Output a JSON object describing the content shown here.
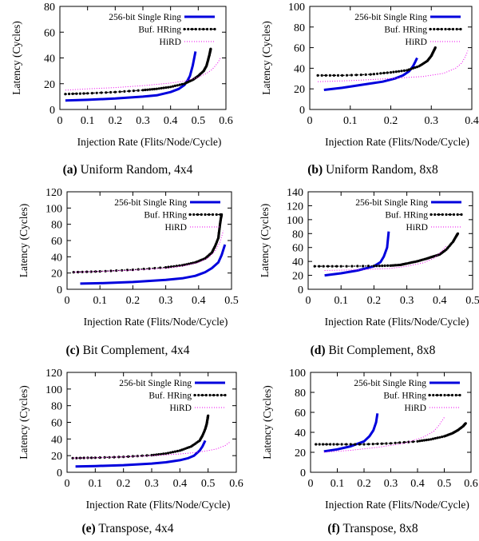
{
  "colors": {
    "single_ring": "#0000dd",
    "buf_hring": "#000000",
    "hird": "#ee00ee"
  },
  "chart_data": [
    {
      "id": "a",
      "type": "line",
      "caption_letter": "(a)",
      "caption_text": "Uniform Random, 4x4",
      "xlabel": "Injection Rate (Flits/Node/Cycle)",
      "ylabel": "Latency (Cycles)",
      "xlim": [
        0,
        0.6
      ],
      "ylim": [
        0,
        80
      ],
      "xticks": [
        "0",
        "0.1",
        "0.2",
        "0.3",
        "0.4",
        "0.5",
        "0.6"
      ],
      "yticks": [
        "0",
        "20",
        "40",
        "60",
        "80"
      ],
      "legend_position": "top-right",
      "series": [
        {
          "name": "256-bit Single Ring",
          "style": "thick-solid",
          "x": [
            0.02,
            0.1,
            0.2,
            0.3,
            0.35,
            0.4,
            0.43,
            0.45,
            0.46,
            0.47,
            0.48,
            0.49
          ],
          "y": [
            7,
            7.5,
            8.5,
            10,
            11,
            13.5,
            16,
            19,
            22,
            26,
            34,
            45
          ]
        },
        {
          "name": "Buf. HRing",
          "style": "dotted-marker",
          "x": [
            0.02,
            0.1,
            0.2,
            0.3,
            0.35,
            0.4,
            0.45,
            0.48,
            0.5,
            0.52,
            0.53,
            0.535,
            0.54,
            0.543,
            0.545
          ],
          "y": [
            12,
            12.5,
            13.5,
            15,
            16,
            17.5,
            20,
            23,
            26,
            30,
            34,
            38,
            42,
            45,
            47
          ]
        },
        {
          "name": "HiRD",
          "style": "dotted",
          "x": [
            0.02,
            0.1,
            0.2,
            0.3,
            0.4,
            0.45,
            0.5,
            0.53,
            0.55,
            0.57,
            0.58
          ],
          "y": [
            15,
            16,
            17,
            18.5,
            20.5,
            22,
            25,
            28,
            31,
            36,
            40
          ]
        }
      ]
    },
    {
      "id": "b",
      "type": "line",
      "caption_letter": "(b)",
      "caption_text": "Uniform Random, 8x8",
      "xlabel": "Injection Rate (Flits/Node/Cycle)",
      "ylabel": "Latency (Cycles)",
      "xlim": [
        0,
        0.4
      ],
      "ylim": [
        0,
        100
      ],
      "xticks": [
        "0",
        "0.1",
        "0.2",
        "0.3",
        "0.4"
      ],
      "yticks": [
        "0",
        "20",
        "40",
        "60",
        "80",
        "100"
      ],
      "legend_position": "top-right",
      "series": [
        {
          "name": "256-bit Single Ring",
          "style": "thick-solid",
          "x": [
            0.035,
            0.08,
            0.13,
            0.18,
            0.21,
            0.23,
            0.245,
            0.255,
            0.26,
            0.265
          ],
          "y": [
            19,
            21,
            24,
            27,
            30,
            33,
            37,
            42,
            46,
            50
          ]
        },
        {
          "name": "Buf. HRing",
          "style": "dotted-marker",
          "x": [
            0.02,
            0.08,
            0.15,
            0.2,
            0.24,
            0.27,
            0.29,
            0.3,
            0.305,
            0.31
          ],
          "y": [
            33,
            33,
            34,
            36,
            38,
            42,
            47,
            52,
            56,
            60
          ]
        },
        {
          "name": "HiRD",
          "style": "dotted",
          "x": [
            0.02,
            0.1,
            0.2,
            0.28,
            0.33,
            0.36,
            0.375,
            0.385,
            0.39
          ],
          "y": [
            27,
            28,
            30,
            32,
            35,
            40,
            45,
            52,
            57
          ]
        }
      ]
    },
    {
      "id": "c",
      "type": "line",
      "caption_letter": "(c)",
      "caption_text": "Bit Complement, 4x4",
      "xlabel": "Injection Rate (Flits/Node/Cycle)",
      "ylabel": "Latency (Cycles)",
      "xlim": [
        0,
        0.5
      ],
      "ylim": [
        0,
        120
      ],
      "xticks": [
        "0",
        "0.1",
        "0.2",
        "0.3",
        "0.4",
        "0.5"
      ],
      "yticks": [
        "0",
        "20",
        "40",
        "60",
        "80",
        "100",
        "120"
      ],
      "legend_position": "top-right",
      "series": [
        {
          "name": "256-bit Single Ring",
          "style": "thick-solid",
          "x": [
            0.04,
            0.1,
            0.2,
            0.3,
            0.35,
            0.39,
            0.42,
            0.44,
            0.46,
            0.47,
            0.48
          ],
          "y": [
            7,
            7.5,
            9,
            11.5,
            13.5,
            16.5,
            21,
            26,
            33,
            42,
            55
          ]
        },
        {
          "name": "Buf. HRing",
          "style": "dotted-marker",
          "x": [
            0.02,
            0.1,
            0.2,
            0.3,
            0.35,
            0.39,
            0.42,
            0.44,
            0.45,
            0.46,
            0.462,
            0.465,
            0.468,
            0.47
          ],
          "y": [
            21,
            22,
            24,
            27,
            29.5,
            33,
            38,
            45,
            53,
            63,
            70,
            80,
            88,
            92
          ]
        },
        {
          "name": "HiRD",
          "style": "dotted",
          "x": [
            0.02,
            0.1,
            0.2,
            0.3,
            0.35,
            0.4,
            0.43,
            0.45,
            0.465,
            0.475
          ],
          "y": [
            21,
            22,
            23.5,
            26,
            28.5,
            33,
            39,
            47,
            58,
            72
          ]
        }
      ]
    },
    {
      "id": "d",
      "type": "line",
      "caption_letter": "(d)",
      "caption_text": "Bit Complement, 8x8",
      "xlabel": "Injection Rate (Flits/Node/Cycle)",
      "ylabel": "Latency (Cycles)",
      "xlim": [
        0,
        0.5
      ],
      "ylim": [
        0,
        140
      ],
      "xticks": [
        "0",
        "0.1",
        "0.2",
        "0.3",
        "0.4",
        "0.5"
      ],
      "yticks": [
        "0",
        "20",
        "40",
        "60",
        "80",
        "100",
        "120",
        "140"
      ],
      "legend_position": "top-right",
      "series": [
        {
          "name": "256-bit Single Ring",
          "style": "thick-solid",
          "x": [
            0.05,
            0.1,
            0.15,
            0.2,
            0.22,
            0.23,
            0.24,
            0.245
          ],
          "y": [
            20,
            23,
            27,
            33,
            39,
            47,
            60,
            83
          ]
        },
        {
          "name": "Buf. HRing",
          "style": "dotted-marker",
          "x": [
            0.02,
            0.1,
            0.2,
            0.25,
            0.28,
            0.3,
            0.33,
            0.36,
            0.38,
            0.4,
            0.42,
            0.44,
            0.45,
            0.455
          ],
          "y": [
            33,
            33,
            33.5,
            34,
            35,
            37,
            40,
            44,
            47,
            50,
            57,
            68,
            76,
            80
          ]
        },
        {
          "name": "HiRD",
          "style": "dotted",
          "x": [
            0.05,
            0.15,
            0.25,
            0.3,
            0.35,
            0.38,
            0.4,
            0.42
          ],
          "y": [
            27,
            28,
            30,
            33,
            38,
            44,
            52,
            62
          ]
        }
      ]
    },
    {
      "id": "e",
      "type": "line",
      "caption_letter": "(e)",
      "caption_text": "Transpose, 4x4",
      "xlabel": "Injection Rate (Flits/Node/Cycle)",
      "ylabel": "Latency (Cycles)",
      "xlim": [
        0,
        0.6
      ],
      "ylim": [
        0,
        120
      ],
      "xticks": [
        "0",
        "0.1",
        "0.2",
        "0.3",
        "0.4",
        "0.5",
        "0.6"
      ],
      "yticks": [
        "0",
        "20",
        "40",
        "60",
        "80",
        "100",
        "120"
      ],
      "legend_position": "top-right",
      "series": [
        {
          "name": "256-bit Single Ring",
          "style": "thick-solid",
          "x": [
            0.03,
            0.1,
            0.2,
            0.3,
            0.35,
            0.4,
            0.43,
            0.45,
            0.47,
            0.48,
            0.49
          ],
          "y": [
            7,
            7.5,
            8.5,
            10.5,
            12,
            14.5,
            17,
            20,
            26,
            31,
            38
          ]
        },
        {
          "name": "Buf. HRing",
          "style": "dotted-marker",
          "x": [
            0.02,
            0.1,
            0.2,
            0.3,
            0.35,
            0.4,
            0.44,
            0.47,
            0.48,
            0.49,
            0.495,
            0.498,
            0.5
          ],
          "y": [
            17,
            17.5,
            18.5,
            20.5,
            22.5,
            26,
            31,
            38,
            44,
            52,
            58,
            64,
            68
          ]
        },
        {
          "name": "HiRD",
          "style": "dotted",
          "x": [
            0.02,
            0.1,
            0.2,
            0.3,
            0.4,
            0.45,
            0.5,
            0.53,
            0.56,
            0.58
          ],
          "y": [
            17,
            17.5,
            18.5,
            20,
            22,
            23.5,
            26,
            28,
            32,
            37
          ]
        }
      ]
    },
    {
      "id": "f",
      "type": "line",
      "caption_letter": "(f)",
      "caption_text": "Transpose, 8x8",
      "xlabel": "Injection Rate (Flits/Node/Cycle)",
      "ylabel": "Latency (Cycles)",
      "xlim": [
        0,
        0.6
      ],
      "ylim": [
        0,
        100
      ],
      "xticks": [
        "0",
        "0.1",
        "0.2",
        "0.3",
        "0.4",
        "0.5",
        "0.6"
      ],
      "yticks": [
        "0",
        "20",
        "40",
        "60",
        "80",
        "100"
      ],
      "legend_position": "top-right",
      "series": [
        {
          "name": "256-bit Single Ring",
          "style": "thick-solid",
          "x": [
            0.05,
            0.1,
            0.15,
            0.2,
            0.22,
            0.235,
            0.245,
            0.25
          ],
          "y": [
            21,
            23,
            26,
            31,
            36,
            42,
            50,
            59
          ]
        },
        {
          "name": "Buf. HRing",
          "style": "dotted-marker",
          "x": [
            0.02,
            0.1,
            0.2,
            0.3,
            0.4,
            0.45,
            0.5,
            0.53,
            0.55,
            0.57,
            0.58
          ],
          "y": [
            28,
            28,
            28,
            29,
            31,
            33,
            36,
            39,
            42,
            46,
            49
          ]
        },
        {
          "name": "HiRD",
          "style": "dotted",
          "x": [
            0.05,
            0.15,
            0.25,
            0.35,
            0.42,
            0.46,
            0.48,
            0.5
          ],
          "y": [
            20,
            22,
            25,
            29,
            35,
            41,
            47,
            55
          ]
        }
      ]
    }
  ]
}
